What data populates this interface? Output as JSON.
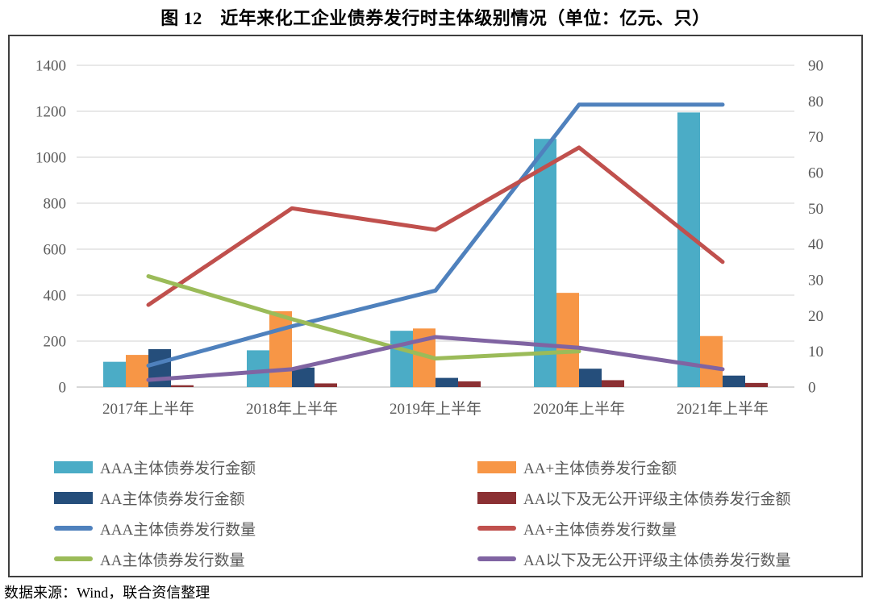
{
  "header": {
    "title": "图 12　近年来化工企业债券发行时主体级别情况（单位：亿元、只）"
  },
  "chart_data": {
    "type": "bar",
    "subtype": "grouped-bars-with-lines-combo",
    "title": "图 12　近年来化工企业债券发行时主体级别情况（单位：亿元、只）",
    "categories": [
      "2017年上半年",
      "2018年上半年",
      "2019年上半年",
      "2020年上半年",
      "2021年上半年"
    ],
    "left_axis": {
      "min": 0,
      "max": 1400,
      "step": 200,
      "unit": "亿元"
    },
    "right_axis": {
      "min": 0,
      "max": 90,
      "step": 10,
      "unit": "只"
    },
    "grid": true,
    "legend_position": "bottom",
    "bar_series": [
      {
        "name": "AAA主体债券发行金额",
        "axis": "left",
        "color": "#4BACC6",
        "values": [
          110,
          160,
          245,
          1080,
          1195
        ]
      },
      {
        "name": "AA+主体债券发行金额",
        "axis": "left",
        "color": "#F79646",
        "values": [
          140,
          330,
          255,
          410,
          222
        ]
      },
      {
        "name": "AA主体债券发行金额",
        "axis": "left",
        "color": "#254E7B",
        "values": [
          165,
          85,
          40,
          80,
          50
        ]
      },
      {
        "name": "AA以下及无公开评级主体债券发行金额",
        "axis": "left",
        "color": "#8B3033",
        "values": [
          8,
          16,
          25,
          30,
          18
        ]
      }
    ],
    "line_series": [
      {
        "name": "AAA主体债券发行数量",
        "axis": "right",
        "color": "#4F81BD",
        "values": [
          6,
          17,
          27,
          79,
          79
        ]
      },
      {
        "name": "AA+主体债券发行数量",
        "axis": "right",
        "color": "#C0504D",
        "values": [
          23,
          50,
          44,
          67,
          35
        ]
      },
      {
        "name": "AA主体债券发行数量",
        "axis": "right",
        "color": "#9BBB59",
        "values": [
          31,
          19,
          8,
          10,
          null
        ]
      },
      {
        "name": "AA以下及无公开评级主体债券发行数量",
        "axis": "right",
        "color": "#8064A2",
        "values": [
          2,
          5,
          14,
          11,
          5
        ]
      }
    ],
    "colors": {
      "gridline": "#D9D9D9",
      "baseline": "#BFBFBF",
      "axis_text": "#595959",
      "chart_border": "#3F3F3F"
    }
  },
  "footer": {
    "source": "数据来源：Wind，联合资信整理"
  }
}
